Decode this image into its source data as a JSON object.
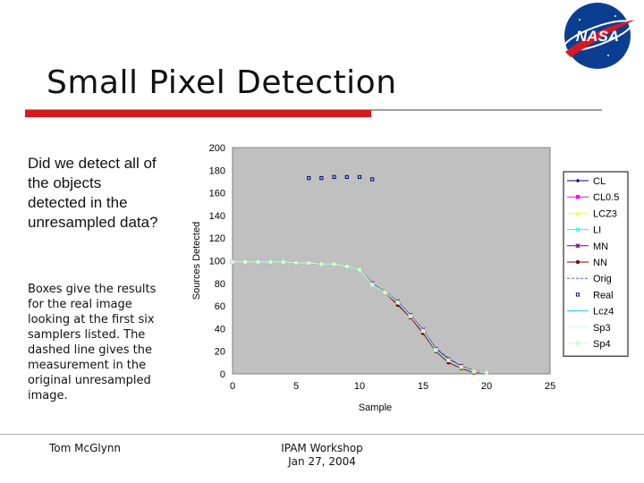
{
  "slide": {
    "title": "Small Pixel Detection",
    "question": "Did we detect all of the objects detected in the unresampled data?",
    "note": "Boxes give the results for the real image looking at the first six samplers listed. The dashed line gives the measurement in the original unresampled image.",
    "footer_author": "Tom McGlynn",
    "footer_event_line1": "IPAM Workshop",
    "footer_event_line2": "Jan 27, 2004",
    "logo_text": "NASA",
    "colors": {
      "red_bar": "#d71920",
      "plot_bg": "#c0c0c0",
      "logo_blue": "#0b3d91"
    }
  },
  "chart_data": {
    "type": "line",
    "title": "",
    "xlabel": "Sample",
    "ylabel": "Sources Detected",
    "xlim": [
      0,
      25
    ],
    "ylim": [
      0,
      200
    ],
    "x_ticks": [
      "0",
      "5",
      "10",
      "15",
      "20",
      "25"
    ],
    "y_ticks": [
      "0",
      "20",
      "40",
      "60",
      "80",
      "100",
      "120",
      "140",
      "160",
      "180",
      "200"
    ],
    "grid": false,
    "legend_position": "right",
    "series": [
      {
        "name": "CL",
        "color": "#000080",
        "marker": "diamond",
        "x": [
          0,
          1,
          2,
          3,
          4,
          5,
          6,
          7,
          8,
          9,
          10,
          11,
          12,
          13,
          14,
          15,
          16,
          17,
          18,
          19,
          20
        ],
        "y": [
          99,
          99,
          99,
          99,
          99,
          98,
          98,
          97,
          97,
          95,
          92,
          79,
          72,
          62,
          50,
          38,
          22,
          12,
          6,
          2,
          1
        ]
      },
      {
        "name": "CL0.5",
        "color": "#ff00ff",
        "marker": "square",
        "x": [
          0,
          1,
          2,
          3,
          4,
          5,
          6,
          7,
          8,
          9,
          10,
          11,
          12,
          13,
          14,
          15,
          16,
          17,
          18,
          19,
          20
        ],
        "y": [
          99,
          99,
          99,
          99,
          99,
          98,
          98,
          97,
          97,
          95,
          92,
          79,
          72,
          63,
          50,
          37,
          21,
          12,
          6,
          2,
          1
        ]
      },
      {
        "name": "LCZ3",
        "color": "#ffff00",
        "marker": "triangle",
        "x": [
          0,
          1,
          2,
          3,
          4,
          5,
          6,
          7,
          8,
          9,
          10,
          11,
          12,
          13,
          14,
          15,
          16,
          17,
          18,
          19,
          20
        ],
        "y": [
          99,
          99,
          99,
          99,
          99,
          98,
          98,
          97,
          97,
          95,
          92,
          79,
          72,
          63,
          51,
          38,
          21,
          12,
          6,
          2,
          1
        ]
      },
      {
        "name": "LI",
        "color": "#00ffff",
        "marker": "x",
        "x": [
          0,
          1,
          2,
          3,
          4,
          5,
          6,
          7,
          8,
          9,
          10,
          11,
          12,
          13,
          14,
          15,
          16,
          17,
          18,
          19,
          20
        ],
        "y": [
          99,
          99,
          99,
          99,
          99,
          98,
          98,
          97,
          97,
          95,
          92,
          79,
          72,
          63,
          51,
          38,
          20,
          12,
          6,
          2,
          1
        ]
      },
      {
        "name": "MN",
        "color": "#800080",
        "marker": "star",
        "x": [
          0,
          1,
          2,
          3,
          4,
          5,
          6,
          7,
          8,
          9,
          10,
          11,
          12,
          13,
          14,
          15,
          16,
          17,
          18,
          19,
          20
        ],
        "y": [
          99,
          99,
          99,
          99,
          99,
          98,
          98,
          97,
          97,
          95,
          92,
          80,
          72,
          64,
          52,
          39,
          22,
          13,
          7,
          2,
          1
        ]
      },
      {
        "name": "NN",
        "color": "#800000",
        "marker": "circle",
        "x": [
          0,
          1,
          2,
          3,
          4,
          5,
          6,
          7,
          8,
          9,
          10,
          11,
          12,
          13,
          14,
          15,
          16,
          17,
          18,
          19,
          20
        ],
        "y": [
          99,
          99,
          99,
          99,
          99,
          98,
          98,
          97,
          97,
          95,
          92,
          79,
          72,
          61,
          50,
          36,
          20,
          10,
          5,
          1,
          1
        ]
      },
      {
        "name": "Orig",
        "color": "#3366cc",
        "marker": "none",
        "dashed": true,
        "x": [
          0,
          1,
          2,
          3,
          4,
          5,
          6,
          7,
          8,
          9,
          10,
          11,
          12,
          13,
          14,
          15,
          16,
          17,
          18,
          19,
          20
        ],
        "y": [
          99,
          99,
          99,
          99,
          99,
          98,
          98,
          97,
          97,
          95,
          92,
          80,
          73,
          64,
          52,
          39,
          23,
          14,
          7,
          3,
          1
        ]
      },
      {
        "name": "Real",
        "color": "#000080",
        "marker": "open-square",
        "line": false,
        "x": [
          6,
          7,
          8,
          9,
          10,
          11
        ],
        "y": [
          173,
          173,
          174,
          174,
          174,
          172
        ]
      },
      {
        "name": "Lcz4",
        "color": "#00ccff",
        "marker": "none",
        "x": [
          0,
          1,
          2,
          3,
          4,
          5,
          6,
          7,
          8,
          9,
          10,
          11,
          12,
          13,
          14,
          15,
          16,
          17,
          18,
          19,
          20
        ],
        "y": [
          99,
          99,
          99,
          99,
          99,
          98,
          98,
          97,
          97,
          95,
          92,
          79,
          72,
          63,
          51,
          38,
          21,
          12,
          6,
          2,
          1
        ]
      },
      {
        "name": "Sp3",
        "color": "#ccffff",
        "marker": "none",
        "x": [
          0,
          1,
          2,
          3,
          4,
          5,
          6,
          7,
          8,
          9,
          10,
          11,
          12,
          13,
          14,
          15,
          16,
          17,
          18,
          19,
          20
        ],
        "y": [
          99,
          99,
          99,
          99,
          99,
          98,
          98,
          97,
          97,
          95,
          92,
          79,
          72,
          63,
          51,
          38,
          21,
          12,
          6,
          2,
          1
        ]
      },
      {
        "name": "Sp4",
        "color": "#ccffcc",
        "marker": "square",
        "x": [
          0,
          1,
          2,
          3,
          4,
          5,
          6,
          7,
          8,
          9,
          10,
          11,
          12,
          13,
          14,
          15,
          16,
          17,
          18,
          19,
          20
        ],
        "y": [
          99,
          99,
          99,
          99,
          99,
          98,
          98,
          97,
          97,
          95,
          92,
          79,
          72,
          63,
          51,
          38,
          21,
          12,
          6,
          2,
          1
        ]
      }
    ]
  }
}
